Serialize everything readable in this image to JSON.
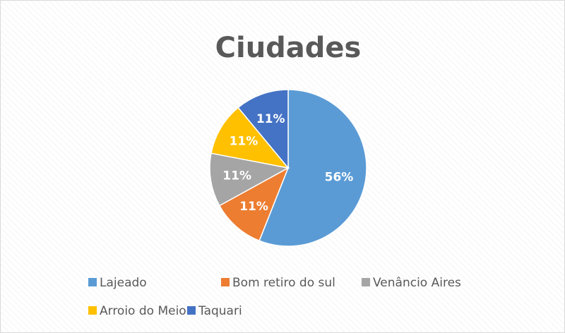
{
  "chart_data": {
    "type": "pie",
    "title": "Ciudades",
    "categories": [
      "Lajeado",
      "Bom retiro do sul",
      "Venâncio Aires",
      "Arroio do Meio",
      "Taquari"
    ],
    "values": [
      56,
      11,
      11,
      11,
      11
    ],
    "value_labels": [
      "56%",
      "11%",
      "11%",
      "11%",
      "11%"
    ],
    "colors": [
      "#5b9bd5",
      "#ed7d31",
      "#a5a5a5",
      "#ffc000",
      "#4472c4"
    ],
    "legend": "bottom"
  }
}
